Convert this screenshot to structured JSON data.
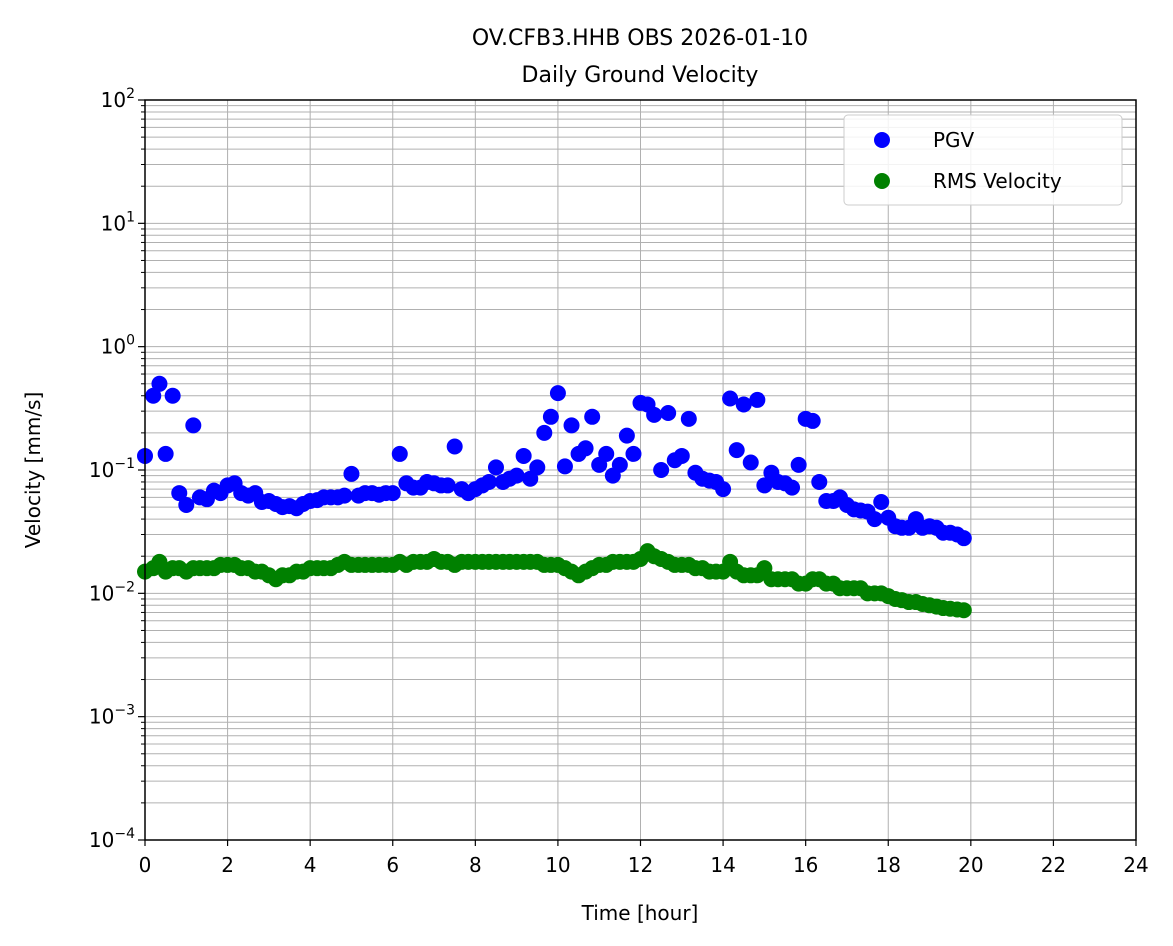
{
  "chart_data": {
    "type": "scatter",
    "title": "OV.CFB3.HHB OBS 2026-01-10",
    "subtitle": "Daily Ground Velocity",
    "xlabel": "Time [hour]",
    "ylabel": "Velocity [mm/s]",
    "xlim": [
      0,
      24
    ],
    "ylim": [
      0.0001,
      100
    ],
    "yscale": "log",
    "x_ticks": [
      "0",
      "2",
      "4",
      "6",
      "8",
      "10",
      "12",
      "14",
      "16",
      "18",
      "20",
      "22",
      "24"
    ],
    "y_ticks": [
      {
        "base": "10",
        "exp": "−4"
      },
      {
        "base": "10",
        "exp": "−3"
      },
      {
        "base": "10",
        "exp": "−2"
      },
      {
        "base": "10",
        "exp": "−1"
      },
      {
        "base": "10",
        "exp": "0"
      },
      {
        "base": "10",
        "exp": "1"
      },
      {
        "base": "10",
        "exp": "2"
      }
    ],
    "grid": true,
    "legend_position": "top-right",
    "series": [
      {
        "name": "PGV",
        "color": "#0000ff",
        "x": [
          0.0,
          0.2,
          0.35,
          0.5,
          0.67,
          0.83,
          1.0,
          1.17,
          1.33,
          1.5,
          1.67,
          1.83,
          2.0,
          2.17,
          2.33,
          2.5,
          2.67,
          2.83,
          3.0,
          3.17,
          3.33,
          3.5,
          3.67,
          3.83,
          4.0,
          4.17,
          4.33,
          4.5,
          4.67,
          4.83,
          5.0,
          5.17,
          5.33,
          5.5,
          5.67,
          5.83,
          6.0,
          6.17,
          6.33,
          6.5,
          6.67,
          6.83,
          7.0,
          7.17,
          7.33,
          7.5,
          7.67,
          7.83,
          8.0,
          8.17,
          8.33,
          8.5,
          8.67,
          8.83,
          9.0,
          9.17,
          9.33,
          9.5,
          9.67,
          9.83,
          10.0,
          10.17,
          10.33,
          10.5,
          10.67,
          10.83,
          11.0,
          11.17,
          11.33,
          11.5,
          11.67,
          11.83,
          12.0,
          12.17,
          12.33,
          12.5,
          12.67,
          12.83,
          13.0,
          13.17,
          13.33,
          13.5,
          13.67,
          13.83,
          14.0,
          14.17,
          14.33,
          14.5,
          14.67,
          14.83,
          15.0,
          15.17,
          15.33,
          15.5,
          15.67,
          15.83,
          16.0,
          16.17,
          16.33,
          16.5,
          16.67,
          16.83,
          17.0,
          17.17,
          17.33,
          17.5,
          17.67,
          17.83,
          18.0,
          18.17,
          18.33,
          18.5,
          18.67,
          18.83,
          19.0,
          19.17,
          19.33,
          19.5,
          19.67,
          19.83
        ],
        "values": [
          0.13,
          0.4,
          0.5,
          0.135,
          0.4,
          0.065,
          0.052,
          0.23,
          0.06,
          0.058,
          0.068,
          0.065,
          0.075,
          0.078,
          0.065,
          0.062,
          0.065,
          0.055,
          0.056,
          0.053,
          0.05,
          0.051,
          0.049,
          0.053,
          0.056,
          0.057,
          0.06,
          0.06,
          0.06,
          0.062,
          0.093,
          0.062,
          0.065,
          0.065,
          0.063,
          0.065,
          0.065,
          0.135,
          0.078,
          0.072,
          0.072,
          0.08,
          0.078,
          0.075,
          0.075,
          0.155,
          0.07,
          0.065,
          0.07,
          0.075,
          0.08,
          0.105,
          0.08,
          0.085,
          0.09,
          0.13,
          0.085,
          0.105,
          0.2,
          0.27,
          0.42,
          0.107,
          0.23,
          0.135,
          0.15,
          0.27,
          0.11,
          0.135,
          0.09,
          0.11,
          0.19,
          0.135,
          0.35,
          0.34,
          0.28,
          0.1,
          0.29,
          0.12,
          0.13,
          0.26,
          0.095,
          0.085,
          0.082,
          0.08,
          0.07,
          0.38,
          0.145,
          0.34,
          0.115,
          0.37,
          0.075,
          0.095,
          0.08,
          0.078,
          0.072,
          0.11,
          0.26,
          0.25,
          0.08,
          0.056,
          0.056,
          0.06,
          0.052,
          0.048,
          0.047,
          0.046,
          0.04,
          0.055,
          0.041,
          0.035,
          0.034,
          0.034,
          0.04,
          0.034,
          0.035,
          0.034,
          0.031,
          0.031,
          0.03,
          0.028
        ]
      },
      {
        "name": "RMS Velocity",
        "color": "#008000",
        "x": [
          0.0,
          0.2,
          0.35,
          0.5,
          0.67,
          0.83,
          1.0,
          1.17,
          1.33,
          1.5,
          1.67,
          1.83,
          2.0,
          2.17,
          2.33,
          2.5,
          2.67,
          2.83,
          3.0,
          3.17,
          3.33,
          3.5,
          3.67,
          3.83,
          4.0,
          4.17,
          4.33,
          4.5,
          4.67,
          4.83,
          5.0,
          5.17,
          5.33,
          5.5,
          5.67,
          5.83,
          6.0,
          6.17,
          6.33,
          6.5,
          6.67,
          6.83,
          7.0,
          7.17,
          7.33,
          7.5,
          7.67,
          7.83,
          8.0,
          8.17,
          8.33,
          8.5,
          8.67,
          8.83,
          9.0,
          9.17,
          9.33,
          9.5,
          9.67,
          9.83,
          10.0,
          10.17,
          10.33,
          10.5,
          10.67,
          10.83,
          11.0,
          11.17,
          11.33,
          11.5,
          11.67,
          11.83,
          12.0,
          12.17,
          12.33,
          12.5,
          12.67,
          12.83,
          13.0,
          13.17,
          13.33,
          13.5,
          13.67,
          13.83,
          14.0,
          14.17,
          14.33,
          14.5,
          14.67,
          14.83,
          15.0,
          15.17,
          15.33,
          15.5,
          15.67,
          15.83,
          16.0,
          16.17,
          16.33,
          16.5,
          16.67,
          16.83,
          17.0,
          17.17,
          17.33,
          17.5,
          17.67,
          17.83,
          18.0,
          18.17,
          18.33,
          18.5,
          18.67,
          18.83,
          19.0,
          19.17,
          19.33,
          19.5,
          19.67,
          19.83
        ],
        "values": [
          0.015,
          0.016,
          0.018,
          0.015,
          0.016,
          0.016,
          0.015,
          0.016,
          0.016,
          0.016,
          0.016,
          0.017,
          0.017,
          0.017,
          0.016,
          0.016,
          0.015,
          0.015,
          0.014,
          0.013,
          0.014,
          0.014,
          0.015,
          0.015,
          0.016,
          0.016,
          0.016,
          0.016,
          0.017,
          0.018,
          0.017,
          0.017,
          0.017,
          0.017,
          0.017,
          0.017,
          0.017,
          0.018,
          0.017,
          0.018,
          0.018,
          0.018,
          0.019,
          0.018,
          0.018,
          0.017,
          0.018,
          0.018,
          0.018,
          0.018,
          0.018,
          0.018,
          0.018,
          0.018,
          0.018,
          0.018,
          0.018,
          0.018,
          0.017,
          0.017,
          0.017,
          0.016,
          0.015,
          0.014,
          0.015,
          0.016,
          0.017,
          0.017,
          0.018,
          0.018,
          0.018,
          0.018,
          0.019,
          0.022,
          0.02,
          0.019,
          0.018,
          0.017,
          0.017,
          0.017,
          0.016,
          0.016,
          0.015,
          0.015,
          0.015,
          0.018,
          0.015,
          0.014,
          0.014,
          0.014,
          0.016,
          0.013,
          0.013,
          0.013,
          0.013,
          0.012,
          0.012,
          0.013,
          0.013,
          0.012,
          0.012,
          0.011,
          0.011,
          0.011,
          0.011,
          0.01,
          0.01,
          0.01,
          0.0095,
          0.009,
          0.0088,
          0.0085,
          0.0085,
          0.0082,
          0.008,
          0.0078,
          0.0076,
          0.0075,
          0.0074,
          0.0073
        ]
      }
    ]
  }
}
